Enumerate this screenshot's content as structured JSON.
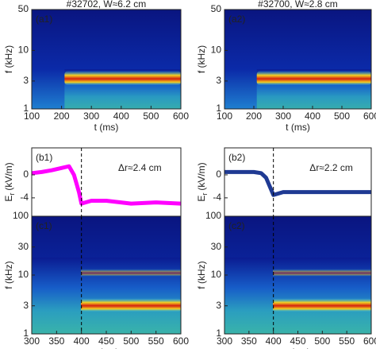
{
  "chart_data": [
    {
      "type": "spectrogram",
      "title": "#32702, W≈6.2 cm",
      "panel": "(a1)",
      "xlabel": "t (ms)",
      "ylabel": "f (kHz)",
      "xlim": [
        100,
        600
      ],
      "ylim": [
        1,
        50
      ],
      "log_y": true,
      "xticks": [
        100,
        200,
        300,
        400,
        500,
        600
      ],
      "yticks": [
        1,
        3,
        10,
        50
      ]
    },
    {
      "type": "spectrogram",
      "title": "#32700, W≈2.8 cm",
      "panel": "(a2)",
      "xlabel": "t (ms)",
      "ylabel": "f (kHz)",
      "xlim": [
        100,
        600
      ],
      "ylim": [
        1,
        50
      ],
      "log_y": true,
      "xticks": [
        100,
        200,
        300,
        400,
        500,
        600
      ],
      "yticks": [
        1,
        3,
        10,
        50
      ]
    },
    {
      "type": "line",
      "panel": "(b1)",
      "ylabel": {
        "main": "E",
        "sub": "r",
        "unit": "(kV/m)"
      },
      "annotation": "Δr≈2.4 cm",
      "xlim": [
        300,
        600
      ],
      "ylim": [
        -7.2,
        4.7
      ],
      "yticks": [
        0,
        -4
      ],
      "marker_x": 400,
      "series": [
        {
          "color": "#ff00ff",
          "x": [
            300,
            320,
            340,
            360,
            375,
            385,
            395,
            400,
            420,
            450,
            500,
            550,
            600
          ],
          "values": [
            0.3,
            0.5,
            0.8,
            1.2,
            1.5,
            0,
            -3,
            -5,
            -4.5,
            -4.5,
            -5,
            -4.8,
            -5
          ]
        }
      ]
    },
    {
      "type": "line",
      "panel": "(b2)",
      "ylabel": {
        "main": "E",
        "sub": "r",
        "unit": "(kV/m)"
      },
      "annotation": "Δr≈2.2 cm",
      "xlim": [
        300,
        600
      ],
      "ylim": [
        -7.2,
        4.7
      ],
      "yticks": [
        0,
        -4
      ],
      "marker_x": 400,
      "series": [
        {
          "color": "#1f3a93",
          "x": [
            300,
            320,
            340,
            360,
            375,
            385,
            395,
            400,
            420,
            450,
            500,
            550,
            600
          ],
          "values": [
            0.5,
            0.5,
            0.5,
            0.5,
            0.3,
            -0.5,
            -2.5,
            -3.5,
            -3,
            -3,
            -3,
            -3,
            -3
          ]
        }
      ]
    },
    {
      "type": "spectrogram",
      "panel": "(c1)",
      "xlabel": "t (ms)",
      "ylabel": "f (kHz)",
      "xlim": [
        300,
        600
      ],
      "ylim": [
        1,
        100
      ],
      "log_y": true,
      "xticks": [
        300,
        350,
        400,
        450,
        500,
        550,
        600
      ],
      "yticks": [
        1,
        3,
        10,
        30,
        100
      ],
      "marker_x": 400
    },
    {
      "type": "spectrogram",
      "panel": "(c2)",
      "xlabel": "t (ms)",
      "ylabel": "f (kHz)",
      "xlim": [
        300,
        600
      ],
      "ylim": [
        1,
        100
      ],
      "log_y": true,
      "xticks": [
        300,
        350,
        400,
        450,
        500,
        550,
        600
      ],
      "yticks": [
        1,
        3,
        10,
        30,
        100
      ],
      "marker_x": 400
    }
  ]
}
